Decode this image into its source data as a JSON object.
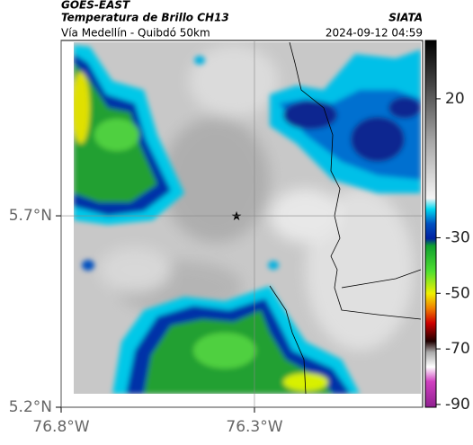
{
  "header": {
    "source": "GOES-EAST",
    "title": "Temperatura de Brillo CH13",
    "agency": "SIATA",
    "subtitle": "Vía Medellín - Quibdó 50km",
    "datetime": "2024-09-12 04:59"
  },
  "map": {
    "xlim": [
      -76.8,
      -75.865
    ],
    "ylim": [
      5.2,
      6.158
    ],
    "xticks": [
      {
        "value": -76.8,
        "label": "76.8°W"
      },
      {
        "value": -76.3,
        "label": "76.3°W"
      }
    ],
    "yticks": [
      {
        "value": 5.7,
        "label": "5.7°N"
      },
      {
        "value": 5.2,
        "label": "5.2°N"
      }
    ],
    "grid": true
  },
  "colorbar": {
    "clim": [
      -91,
      41
    ],
    "ticks": [
      20,
      -30,
      -50,
      -70,
      -90
    ]
  }
}
